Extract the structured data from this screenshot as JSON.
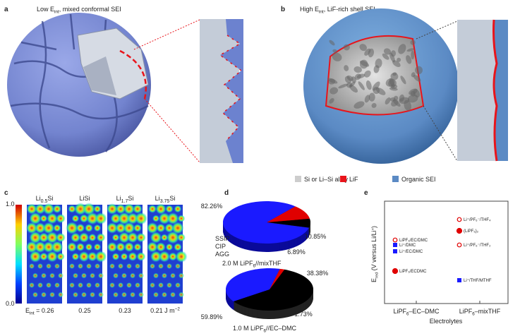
{
  "panel_a": {
    "letter": "a",
    "title": [
      "Low ",
      "E",
      {
        "sub": "int"
      },
      ", mixed conformal SEI"
    ]
  },
  "panel_b": {
    "letter": "b",
    "title": [
      "High ",
      "E",
      {
        "sub": "int"
      },
      ", LiF-rich shell SEI"
    ]
  },
  "legend": [
    {
      "label": "Si or Li–Si alloy",
      "color": "#cdcdcd"
    },
    {
      "label": "LiF",
      "color": "#e8141b"
    },
    {
      "label": "Organic SEI",
      "color": "#5b8ac4"
    }
  ],
  "panel_c": {
    "letter": "c",
    "colorbar_max": "1.0",
    "colorbar_min": "0.0",
    "columns": [
      {
        "name": [
          "Li",
          {
            "sub": "0.5"
          },
          "Si"
        ],
        "energy": [
          "E",
          {
            "sub": "int"
          },
          " = 0.26"
        ]
      },
      {
        "name": [
          "LiSi"
        ],
        "energy": [
          "0.25"
        ]
      },
      {
        "name": [
          "Li",
          {
            "sub": "1.7"
          },
          "Si"
        ],
        "energy": [
          "0.23"
        ]
      },
      {
        "name": [
          "Li",
          {
            "sub": "3.75"
          },
          "Si"
        ],
        "energy": [
          "0.21 J m",
          {
            "sup": "−2"
          }
        ]
      }
    ]
  },
  "panel_d": {
    "letter": "d",
    "legend": [
      {
        "name": "SSIP",
        "color": "#000000"
      },
      {
        "name": "CIP",
        "color": "#1a1aff"
      },
      {
        "name": "AGG",
        "color": "#e00000"
      }
    ],
    "pies": [
      {
        "caption": [
          "2.0 M LiPF",
          {
            "sub": "6"
          },
          "//mixTHF"
        ],
        "values": [
          6.89,
          82.26,
          10.85
        ],
        "value_labels": [
          "6.89%",
          "82.26%",
          "10.85%"
        ]
      },
      {
        "caption": [
          "1.0 M LiPF",
          {
            "sub": "6"
          },
          "//EC–DMC"
        ],
        "values": [
          59.89,
          38.38,
          1.73
        ],
        "value_labels": [
          "59.89%",
          "38.38%",
          "1.73%"
        ]
      }
    ]
  },
  "panel_e": {
    "letter": "e",
    "y_label": [
      "E",
      {
        "sub": "red"
      },
      " (V versus Li/Li",
      {
        "sup": "+"
      },
      ")"
    ],
    "x_label": "Electrolytes",
    "categories": [
      [
        "LiPF",
        {
          "sub": "6"
        },
        "–EC–DMC"
      ],
      [
        "LiPF",
        {
          "sub": "6"
        },
        "–mixTHF"
      ]
    ],
    "points": [
      {
        "label": "LiPF₆/EC/DMC",
        "color": "#e00000",
        "marker": "open-circle"
      },
      {
        "label": "Li⁺/DMC",
        "color": "#1a1aff",
        "marker": "square"
      },
      {
        "label": "Li⁺/EC/DMC",
        "color": "#1a1aff",
        "marker": "square"
      },
      {
        "label": "LiPF₆/ECDMC",
        "color": "#e00000",
        "marker": "circle"
      },
      {
        "label": "Li⁺/PF₆⁻/THF₄",
        "color": "#e00000",
        "marker": "open-circle"
      },
      {
        "label": "(LiPF₆)₂",
        "color": "#e00000",
        "marker": "circle"
      },
      {
        "label": "Li⁺/PF₆⁻/THF₂",
        "color": "#e00000",
        "marker": "open-circle"
      },
      {
        "label": "Li⁺/THF/MTHF",
        "color": "#1a1aff",
        "marker": "square"
      }
    ]
  }
}
